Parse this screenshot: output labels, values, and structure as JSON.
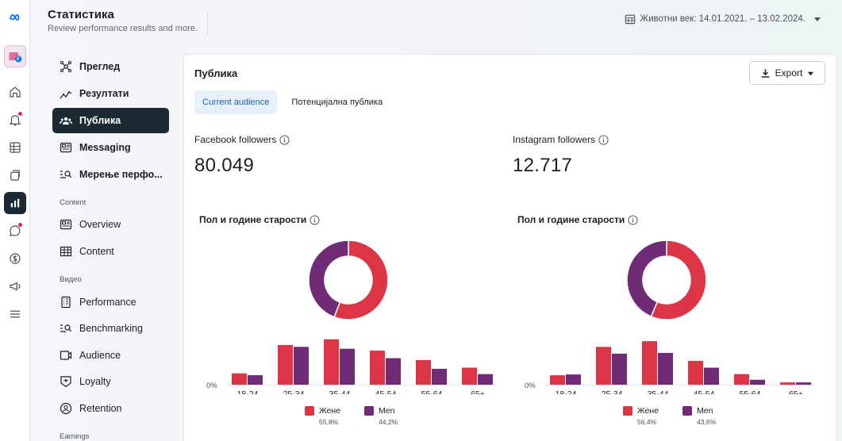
{
  "header": {
    "title": "Статистика",
    "subtitle": "Review performance results and more.",
    "date_range": "Животни век: 14.01.2021. – 13.02.2024."
  },
  "rail": {
    "items": [
      "meta-logo-icon",
      "account-avatar",
      "home-icon",
      "notifications-icon",
      "table-icon",
      "pages-icon",
      "insights-icon",
      "chat-icon",
      "dollar-icon",
      "megaphone-icon",
      "menu-icon"
    ]
  },
  "nav": {
    "items": [
      {
        "label": "Преглед",
        "icon": "overview-icon"
      },
      {
        "label": "Резултати",
        "icon": "results-icon"
      },
      {
        "label": "Публика",
        "icon": "audience-icon"
      },
      {
        "label": "Messaging",
        "icon": "messaging-icon"
      },
      {
        "label": "Мерење перфо...",
        "icon": "benchmark-icon"
      }
    ],
    "content_section": "Content",
    "content_items": [
      {
        "label": "Overview",
        "icon": "overview-icon"
      },
      {
        "label": "Content",
        "icon": "content-table-icon"
      }
    ],
    "video_section": "Видео",
    "video_items": [
      {
        "label": "Performance",
        "icon": "performance-icon"
      },
      {
        "label": "Benchmarking",
        "icon": "benchmark-icon"
      },
      {
        "label": "Audience",
        "icon": "video-audience-icon"
      },
      {
        "label": "Loyalty",
        "icon": "loyalty-icon"
      },
      {
        "label": "Retention",
        "icon": "retention-icon"
      }
    ],
    "earnings_section": "Earnings"
  },
  "card": {
    "title": "Публика",
    "export_label": "Export",
    "tabs": [
      "Current audience",
      "Потенцијална публика"
    ]
  },
  "metrics": {
    "facebook": {
      "label": "Facebook followers",
      "value": "80.049"
    },
    "instagram": {
      "label": "Instagram followers",
      "value": "12.717"
    }
  },
  "colors": {
    "women": "#dc3545",
    "men": "#6f2b75",
    "accent": "#1a5fa8"
  },
  "chart_data": [
    {
      "type": "bar",
      "title": "Пол и године старости",
      "categories": [
        "18-24",
        "25-34",
        "35-44",
        "45-54",
        "55-64",
        "65+"
      ],
      "series": [
        {
          "name": "Жене",
          "values": [
            3.0,
            10.5,
            12.0,
            9.0,
            6.5,
            4.5
          ]
        },
        {
          "name": "Men",
          "values": [
            2.5,
            10.0,
            9.5,
            7.0,
            4.2,
            2.8
          ]
        }
      ],
      "ylim": [
        0,
        13
      ],
      "y_tick": "0%",
      "donut": [
        {
          "name": "Жене",
          "value": 55.8,
          "label": "55,8%"
        },
        {
          "name": "Men",
          "value": 44.2,
          "label": "44,2%"
        }
      ]
    },
    {
      "type": "bar",
      "title": "Пол и године старости",
      "categories": [
        "18-24",
        "25-34",
        "35-44",
        "45-54",
        "55-64",
        "65+"
      ],
      "series": [
        {
          "name": "Жене",
          "values": [
            2.5,
            10.0,
            11.5,
            6.3,
            2.8,
            0.6
          ]
        },
        {
          "name": "Men",
          "values": [
            2.7,
            8.2,
            8.4,
            4.5,
            1.3,
            0.6
          ]
        }
      ],
      "ylim": [
        0,
        13
      ],
      "y_tick": "0%",
      "donut": [
        {
          "name": "Жене",
          "value": 56.4,
          "label": "56,4%"
        },
        {
          "name": "Men",
          "value": 43.6,
          "label": "43,6%"
        }
      ]
    }
  ]
}
